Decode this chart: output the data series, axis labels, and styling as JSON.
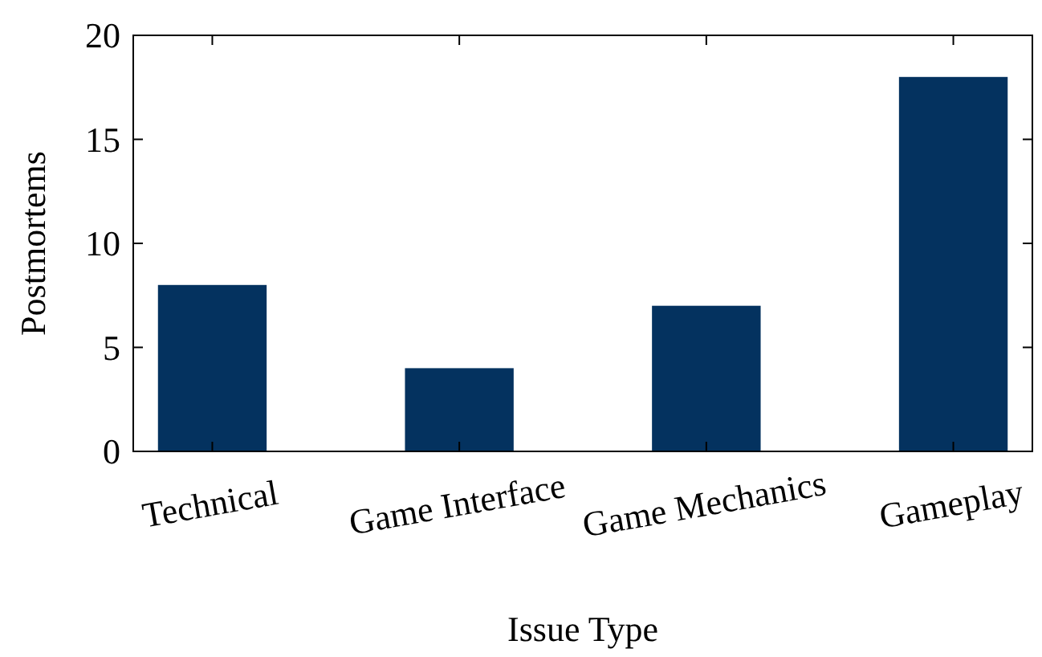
{
  "chart_data": {
    "type": "bar",
    "xlabel": "Issue Type",
    "ylabel": "Postmortems",
    "categories": [
      "Technical",
      "Game Interface",
      "Game Mechanics",
      "Gameplay"
    ],
    "values": [
      8,
      4,
      7,
      18
    ],
    "color": "#04325f",
    "ylim": [
      0,
      20
    ],
    "yticks": [
      0,
      5,
      10,
      15,
      20
    ]
  }
}
